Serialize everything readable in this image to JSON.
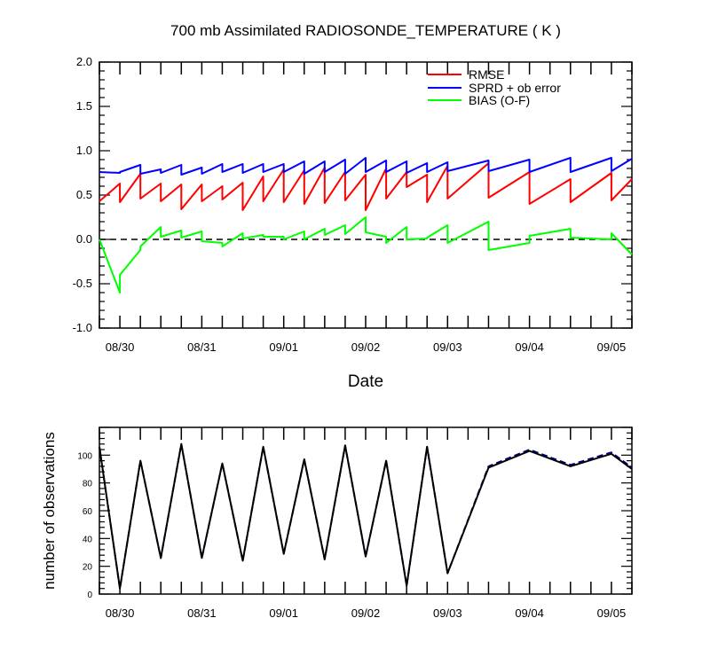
{
  "chart_data": [
    {
      "type": "line",
      "title": "700 mb Assimilated RADIOSONDE_TEMPERATURE ( K )",
      "xlabel": "Date",
      "ylabel": "",
      "xlim": [
        -0.25,
        6.25
      ],
      "ylim": [
        -1.0,
        2.0
      ],
      "y_ticks": [
        "-1.0",
        "-0.5",
        "0.0",
        "0.5",
        "1.0",
        "1.5",
        "2.0"
      ],
      "y_tick_values": [
        -1.0,
        -0.5,
        0.0,
        0.5,
        1.0,
        1.5,
        2.0
      ],
      "x_ticks": [
        "08/30",
        "08/31",
        "09/01",
        "09/02",
        "09/03",
        "09/04",
        "09/05"
      ],
      "x_tick_values": [
        0,
        1,
        2,
        3,
        4,
        5,
        6
      ],
      "zero_line": "dashed",
      "legend_position": "top-right",
      "series": [
        {
          "name": "RMSE",
          "color": "#ff0000",
          "x": [
            -0.25,
            0.0,
            0.0,
            0.25,
            0.25,
            0.5,
            0.5,
            0.75,
            0.75,
            1.0,
            1.0,
            1.25,
            1.25,
            1.5,
            1.5,
            1.75,
            1.75,
            2.0,
            2.0,
            2.25,
            2.25,
            2.5,
            2.5,
            2.75,
            2.75,
            3.0,
            3.0,
            3.25,
            3.25,
            3.5,
            3.5,
            3.75,
            3.75,
            4.0,
            4.0,
            4.5,
            4.5,
            5.0,
            5.0,
            5.5,
            5.5,
            6.0,
            6.0,
            6.25
          ],
          "y": [
            0.43,
            0.63,
            0.42,
            0.74,
            0.46,
            0.63,
            0.43,
            0.62,
            0.34,
            0.62,
            0.43,
            0.6,
            0.45,
            0.64,
            0.33,
            0.71,
            0.43,
            0.79,
            0.42,
            0.78,
            0.4,
            0.81,
            0.41,
            0.76,
            0.44,
            0.73,
            0.33,
            0.8,
            0.46,
            0.76,
            0.59,
            0.73,
            0.42,
            0.83,
            0.46,
            0.86,
            0.47,
            0.76,
            0.4,
            0.68,
            0.42,
            0.75,
            0.44,
            0.68
          ]
        },
        {
          "name": "SPRD + ob error",
          "color": "#0000ff",
          "x": [
            -0.25,
            0.0,
            0.0,
            0.25,
            0.25,
            0.5,
            0.5,
            0.75,
            0.75,
            1.0,
            1.0,
            1.25,
            1.25,
            1.5,
            1.5,
            1.75,
            1.75,
            2.0,
            2.0,
            2.25,
            2.25,
            2.5,
            2.5,
            2.75,
            2.75,
            3.0,
            3.0,
            3.25,
            3.25,
            3.5,
            3.5,
            3.75,
            3.75,
            4.0,
            4.0,
            4.5,
            4.5,
            5.0,
            5.0,
            5.5,
            5.5,
            6.0,
            6.0,
            6.25
          ],
          "y": [
            0.76,
            0.75,
            0.76,
            0.84,
            0.74,
            0.79,
            0.75,
            0.84,
            0.73,
            0.81,
            0.74,
            0.85,
            0.76,
            0.85,
            0.75,
            0.85,
            0.76,
            0.85,
            0.76,
            0.88,
            0.74,
            0.88,
            0.76,
            0.9,
            0.74,
            0.92,
            0.76,
            0.89,
            0.76,
            0.88,
            0.75,
            0.86,
            0.76,
            0.87,
            0.77,
            0.89,
            0.77,
            0.9,
            0.76,
            0.92,
            0.76,
            0.92,
            0.77,
            0.91
          ]
        },
        {
          "name": "BIAS (O-F)",
          "color": "#00ff00",
          "x": [
            -0.25,
            0.0,
            0.0,
            0.25,
            0.25,
            0.5,
            0.5,
            0.75,
            0.75,
            1.0,
            1.0,
            1.25,
            1.25,
            1.5,
            1.5,
            1.75,
            1.75,
            2.0,
            2.0,
            2.25,
            2.25,
            2.5,
            2.5,
            2.75,
            2.75,
            3.0,
            3.0,
            3.25,
            3.25,
            3.5,
            3.5,
            3.75,
            3.75,
            4.0,
            4.0,
            4.5,
            4.5,
            5.0,
            5.0,
            5.5,
            5.5,
            6.0,
            6.0,
            6.25
          ],
          "y": [
            0.0,
            -0.6,
            -0.4,
            -0.12,
            -0.08,
            0.14,
            0.03,
            0.1,
            0.02,
            0.09,
            -0.02,
            -0.04,
            -0.08,
            0.07,
            0.01,
            0.05,
            0.03,
            0.03,
            0.0,
            0.09,
            0.0,
            0.12,
            0.05,
            0.16,
            0.06,
            0.25,
            0.08,
            0.03,
            -0.04,
            0.14,
            0.0,
            0.01,
            0.02,
            0.16,
            -0.04,
            0.2,
            -0.12,
            -0.04,
            0.04,
            0.12,
            0.02,
            0.0,
            0.07,
            -0.17
          ]
        }
      ]
    },
    {
      "type": "line",
      "title": "",
      "xlabel": "",
      "ylabel": "number of observations",
      "xlim": [
        -0.25,
        6.25
      ],
      "ylim": [
        0,
        120
      ],
      "y_ticks": [
        "0",
        "20",
        "40",
        "60",
        "80",
        "100"
      ],
      "y_tick_values": [
        0,
        20,
        40,
        60,
        80,
        100
      ],
      "x_ticks": [
        "08/30",
        "08/31",
        "09/01",
        "09/02",
        "09/03",
        "09/04",
        "09/05"
      ],
      "x_tick_values": [
        0,
        1,
        2,
        3,
        4,
        5,
        6
      ],
      "series": [
        {
          "color": "#00008b",
          "style": "dashed",
          "x": [
            -0.25,
            0.0,
            0.25,
            0.5,
            0.75,
            1.0,
            1.25,
            1.5,
            1.75,
            2.0,
            2.25,
            2.5,
            2.75,
            3.0,
            3.25,
            3.5,
            3.75,
            4.0,
            4.5,
            5.0,
            5.5,
            6.0,
            6.25
          ],
          "y": [
            106,
            4,
            96,
            26,
            108,
            26,
            94,
            24,
            106,
            29,
            97,
            25,
            107,
            27,
            96,
            6,
            106,
            15,
            92,
            104,
            93,
            102,
            91
          ]
        },
        {
          "color": "#000000",
          "style": "solid",
          "x": [
            -0.25,
            0.0,
            0.25,
            0.5,
            0.75,
            1.0,
            1.25,
            1.5,
            1.75,
            2.0,
            2.25,
            2.5,
            2.75,
            3.0,
            3.25,
            3.5,
            3.75,
            4.0,
            4.5,
            5.0,
            5.5,
            6.0,
            6.25
          ],
          "y": [
            106,
            4,
            96,
            26,
            108,
            26,
            94,
            24,
            106,
            29,
            97,
            25,
            107,
            27,
            96,
            6,
            106,
            15,
            91,
            103,
            92,
            101,
            90
          ]
        }
      ]
    }
  ]
}
